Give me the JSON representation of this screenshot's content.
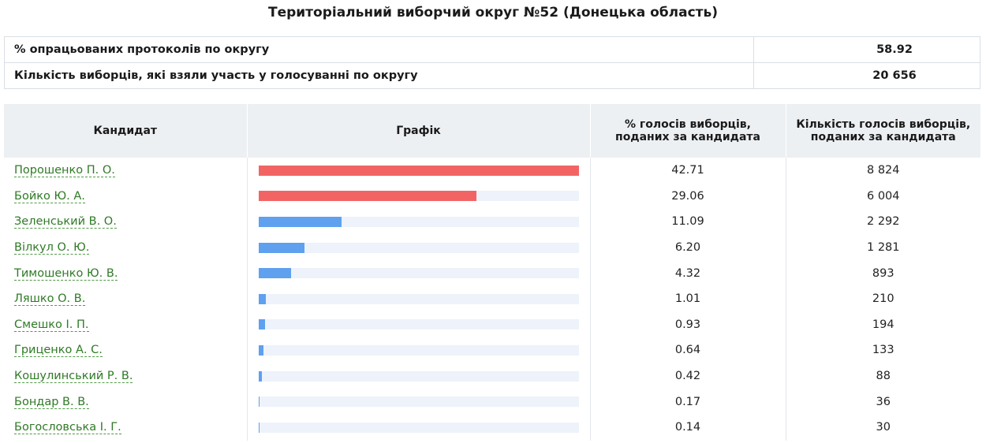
{
  "title": "Територіальний виборчий округ №52 (Донецька область)",
  "summary": [
    {
      "label": "% опрацьованих протоколів по округу",
      "value": "58.92"
    },
    {
      "label": "Кількість виборців, які взяли участь у голосуванні по округу",
      "value": "20 656"
    }
  ],
  "table": {
    "headers": {
      "candidate": "Кандидат",
      "chart": "Графік",
      "percent": "% голосів виборців, поданих за кандидата",
      "votes": "Кількість голосів виборців, поданих за кандидата"
    },
    "rows": [
      {
        "name": "Порошенко П. О.",
        "percent": "42.71",
        "votes": "8 824",
        "bar_fraction": 1.0,
        "bar_color": "#f26464"
      },
      {
        "name": "Бойко Ю. А.",
        "percent": "29.06",
        "votes": "6 004",
        "bar_fraction": 0.68,
        "bar_color": "#f26464"
      },
      {
        "name": "Зеленський В. О.",
        "percent": "11.09",
        "votes": "2 292",
        "bar_fraction": 0.26,
        "bar_color": "#5fa0ef"
      },
      {
        "name": "Вілкул О. Ю.",
        "percent": "6.20",
        "votes": "1 281",
        "bar_fraction": 0.145,
        "bar_color": "#5fa0ef"
      },
      {
        "name": "Тимошенко Ю. В.",
        "percent": "4.32",
        "votes": "893",
        "bar_fraction": 0.101,
        "bar_color": "#5fa0ef"
      },
      {
        "name": "Ляшко О. В.",
        "percent": "1.01",
        "votes": "210",
        "bar_fraction": 0.024,
        "bar_color": "#5fa0ef"
      },
      {
        "name": "Смешко І. П.",
        "percent": "0.93",
        "votes": "194",
        "bar_fraction": 0.022,
        "bar_color": "#5fa0ef"
      },
      {
        "name": "Гриценко А. С.",
        "percent": "0.64",
        "votes": "133",
        "bar_fraction": 0.015,
        "bar_color": "#5fa0ef"
      },
      {
        "name": "Кошулинський Р. В.",
        "percent": "0.42",
        "votes": "88",
        "bar_fraction": 0.01,
        "bar_color": "#5fa0ef"
      },
      {
        "name": "Бондар В. В.",
        "percent": "0.17",
        "votes": "36",
        "bar_fraction": 0.004,
        "bar_color": "#5fa0ef"
      },
      {
        "name": "Богословська І. Г.",
        "percent": "0.14",
        "votes": "30",
        "bar_fraction": 0.003,
        "bar_color": "#5fa0ef"
      }
    ]
  }
}
